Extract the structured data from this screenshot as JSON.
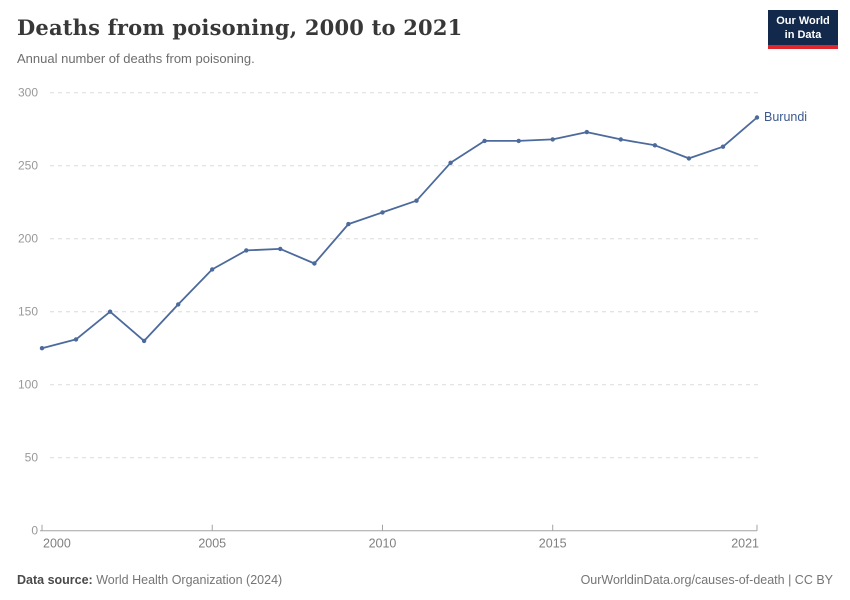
{
  "header": {
    "title": "Deaths from poisoning, 2000 to 2021",
    "subtitle": "Annual number of deaths from poisoning.",
    "logo": {
      "line1": "Our World",
      "line2": "in Data"
    }
  },
  "chart_data": {
    "type": "line",
    "title": "Deaths from poisoning, 2000 to 2021",
    "xlabel": "",
    "ylabel": "",
    "x": [
      2000,
      2001,
      2002,
      2003,
      2004,
      2005,
      2006,
      2007,
      2008,
      2009,
      2010,
      2011,
      2012,
      2013,
      2014,
      2015,
      2016,
      2017,
      2018,
      2019,
      2020,
      2021
    ],
    "series": [
      {
        "name": "Burundi",
        "color": "#4C6A9C",
        "values": [
          125,
          131,
          150,
          130,
          155,
          179,
          192,
          193,
          183,
          210,
          218,
          226,
          252,
          267,
          267,
          268,
          273,
          268,
          264,
          255,
          263,
          283
        ]
      }
    ],
    "ylim": [
      0,
      300
    ],
    "yticks": [
      0,
      50,
      100,
      150,
      200,
      250,
      300
    ],
    "xticks": [
      2000,
      2005,
      2010,
      2015,
      2021
    ],
    "grid": "horizontal-dashed",
    "legend_position": "end-of-line-label"
  },
  "colors": {
    "line": "#4C6A9C",
    "entity_label": "#3D5A8F",
    "gridline": "#dcdcdc",
    "axis": "#a3a3a3",
    "y_tick_label": "#999999",
    "x_tick_label": "#808080",
    "logo_bg": "#12294B",
    "logo_accent": "#E0262D"
  },
  "footer": {
    "source_label": "Data source:",
    "source_value": " World Health Organization (2024)",
    "credit": "OurWorldinData.org/causes-of-death | CC BY"
  }
}
